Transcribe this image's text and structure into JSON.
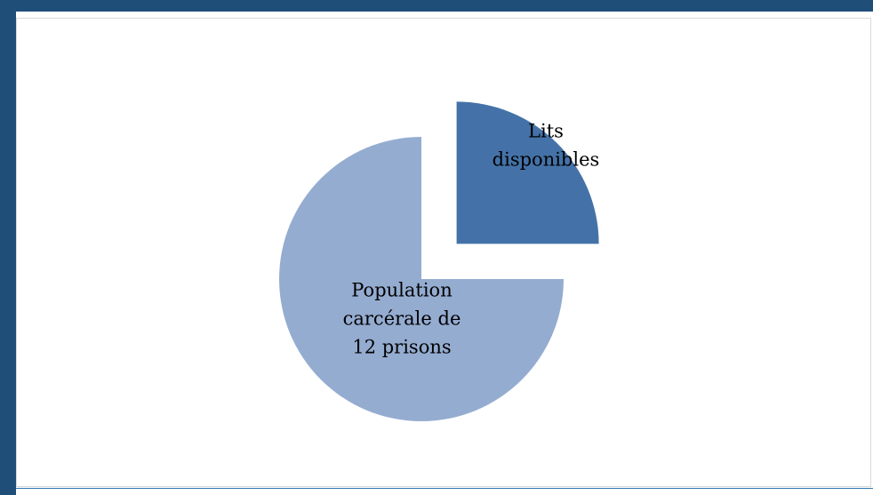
{
  "chart_data": {
    "type": "pie",
    "exploded": true,
    "slices": [
      {
        "label_lines": [
          "Lits",
          "disponibles"
        ],
        "value": 0.25,
        "color": "#4472a8"
      },
      {
        "label_lines": [
          "Population",
          "carcérale de",
          "12 prisons"
        ],
        "value": 0.75,
        "color": "#95acd1"
      }
    ]
  },
  "colors": {
    "frame": "#1f4e79",
    "accent_rule": "#2e75b6"
  }
}
